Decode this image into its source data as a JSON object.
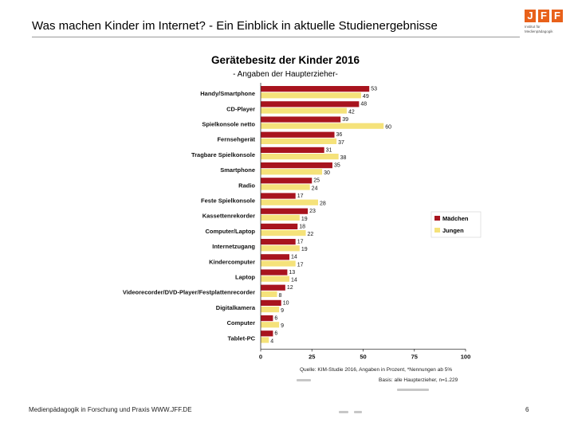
{
  "slide": {
    "title_bold": "Was machen Kinder im Internet?",
    "title_rest": " - Ein Einblick in aktuelle Studienergebnisse",
    "logo_text": "JFF",
    "logo_sub": "Institut für Medienpädagogik",
    "footer": "Medienpädagogik in Forschung und Praxis WWW.JFF.DE",
    "page_number": "6"
  },
  "colors": {
    "maedchen": "#a8141e",
    "jungen": "#f5e27a",
    "accent": "#e8611a"
  },
  "chart_data": {
    "type": "bar",
    "orientation": "horizontal",
    "title": "Gerätebesitz der Kinder 2016",
    "subtitle": "- Angaben der Haupterzieher-",
    "categories": [
      "Handy/Smartphone",
      "CD-Player",
      "Spielkonsole netto",
      "Fernsehgerät",
      "Tragbare Spielkonsole",
      "Smartphone",
      "Radio",
      "Feste Spielkonsole",
      "Kassettenrekorder",
      "Computer/Laptop",
      "Internetzugang",
      "Kindercomputer",
      "Laptop",
      "Videorecorder/DVD-Player/Festplattenrecorder",
      "Digitalkamera",
      "Computer",
      "Tablet-PC"
    ],
    "series": [
      {
        "name": "Mädchen",
        "values": [
          53,
          48,
          39,
          36,
          31,
          35,
          25,
          17,
          23,
          18,
          17,
          14,
          13,
          12,
          10,
          6,
          6
        ]
      },
      {
        "name": "Jungen",
        "values": [
          49,
          42,
          60,
          37,
          38,
          30,
          24,
          28,
          19,
          22,
          19,
          17,
          14,
          8,
          9,
          9,
          4
        ]
      }
    ],
    "xlim": [
      0,
      100
    ],
    "xticks": [
      "0",
      "25",
      "50",
      "75",
      "100"
    ],
    "legend_position": "right",
    "source_line1": "Quelle: KIM-Studie 2016, Angaben in Prozent, *Nennungen ab 5%",
    "source_line2": "Basis: alle Haupterzieher, n=1.229"
  }
}
